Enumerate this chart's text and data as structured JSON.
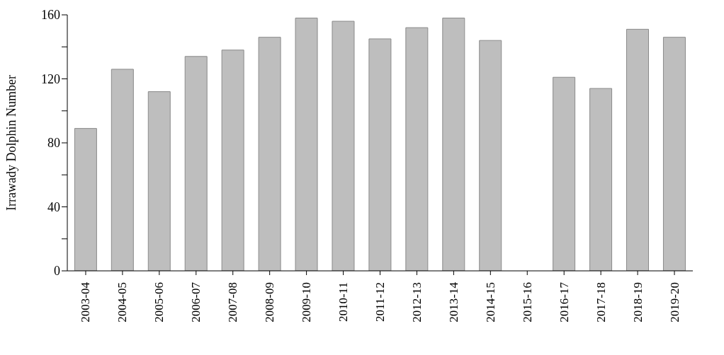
{
  "chart_data": {
    "type": "bar",
    "ylabel": "Irrawady Dolphin Number",
    "categories": [
      "2003-04",
      "2004-05",
      "2005-06",
      "2006-07",
      "2007-08",
      "2008-09",
      "2009-10",
      "2010-11",
      "2011-12",
      "2012-13",
      "2013-14",
      "2014-15",
      "2015-16",
      "2016-17",
      "2017-18",
      "2018-19",
      "2019-20"
    ],
    "values": [
      89,
      126,
      112,
      134,
      138,
      146,
      158,
      156,
      145,
      152,
      158,
      144,
      null,
      121,
      114,
      151,
      146
    ],
    "color": "#bebebe",
    "ylim": [
      0,
      160
    ],
    "yticks": [
      0,
      {
        "value": 20,
        "label": null
      },
      40,
      {
        "value": 60,
        "label": null
      },
      80,
      {
        "value": 100,
        "label": null
      },
      120,
      {
        "value": 140,
        "label": null
      },
      160
    ],
    "grid": false
  }
}
